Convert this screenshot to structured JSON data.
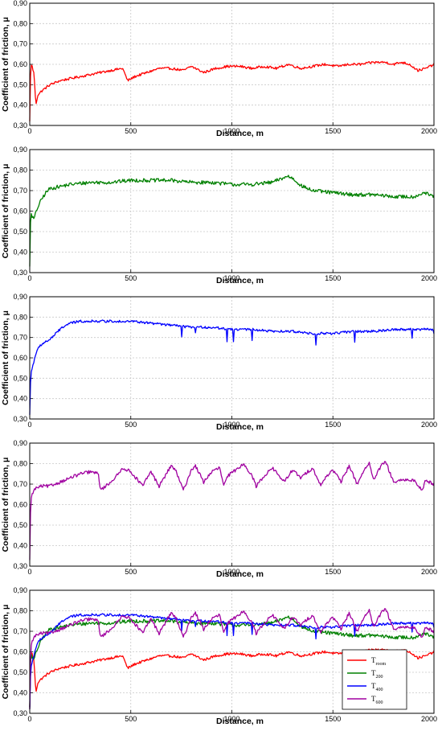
{
  "chart_data": [
    {
      "type": "line",
      "xlabel": "Distance, m",
      "ylabel": "Coefficient of friction, μ",
      "xlim": [
        0,
        2000
      ],
      "ylim": [
        0.3,
        0.9
      ],
      "xticks": [
        "0",
        "500",
        "1000",
        "1500",
        "2000"
      ],
      "yticks": [
        "0,30",
        "0,40",
        "0,50",
        "0,60",
        "0,70",
        "0,80",
        "0,90"
      ],
      "grid": true,
      "series": [
        {
          "color": "#ff0000",
          "x": [
            0,
            5,
            12,
            22,
            30,
            40,
            60,
            100,
            150,
            200,
            250,
            300,
            350,
            400,
            460,
            480,
            485,
            520,
            580,
            640,
            700,
            760,
            800,
            860,
            920,
            980,
            1040,
            1100,
            1160,
            1220,
            1280,
            1340,
            1400,
            1460,
            1520,
            1580,
            1640,
            1700,
            1760,
            1800,
            1840,
            1880,
            1920,
            1960,
            2000
          ],
          "y": [
            0.32,
            0.6,
            0.59,
            0.55,
            0.4,
            0.45,
            0.47,
            0.5,
            0.52,
            0.53,
            0.54,
            0.55,
            0.56,
            0.57,
            0.58,
            0.53,
            0.52,
            0.54,
            0.56,
            0.58,
            0.58,
            0.57,
            0.59,
            0.56,
            0.58,
            0.59,
            0.59,
            0.58,
            0.59,
            0.58,
            0.6,
            0.58,
            0.59,
            0.6,
            0.59,
            0.6,
            0.6,
            0.61,
            0.61,
            0.6,
            0.61,
            0.6,
            0.57,
            0.58,
            0.6
          ]
        }
      ]
    },
    {
      "type": "line",
      "xlabel": "Distance, m",
      "ylabel": "Coefficient of friction, μ",
      "xlim": [
        0,
        2000
      ],
      "ylim": [
        0.3,
        0.9
      ],
      "xticks": [
        "0",
        "500",
        "1000",
        "1500",
        "2000"
      ],
      "yticks": [
        "0,30",
        "0,40",
        "0,50",
        "0,60",
        "0,70",
        "0,80",
        "0,90"
      ],
      "grid": true,
      "series": [
        {
          "color": "#008000",
          "x": [
            0,
            5,
            10,
            20,
            40,
            60,
            80,
            100,
            150,
            200,
            300,
            400,
            500,
            600,
            700,
            800,
            900,
            1000,
            1100,
            1200,
            1250,
            1280,
            1300,
            1350,
            1400,
            1500,
            1600,
            1700,
            1800,
            1900,
            1950,
            2000
          ],
          "y": [
            0.33,
            0.6,
            0.58,
            0.56,
            0.62,
            0.66,
            0.69,
            0.71,
            0.72,
            0.73,
            0.74,
            0.74,
            0.75,
            0.75,
            0.75,
            0.74,
            0.74,
            0.73,
            0.73,
            0.74,
            0.76,
            0.77,
            0.76,
            0.72,
            0.7,
            0.69,
            0.68,
            0.68,
            0.67,
            0.67,
            0.69,
            0.67
          ]
        }
      ]
    },
    {
      "type": "line",
      "xlabel": "Distance, m",
      "ylabel": "Coefficient of friction, μ",
      "xlim": [
        0,
        2000
      ],
      "ylim": [
        0.3,
        0.9
      ],
      "xticks": [
        "0",
        "500",
        "1000",
        "1500",
        "2000"
      ],
      "yticks": [
        "0,30",
        "0,40",
        "0,50",
        "0,60",
        "0,70",
        "0,80",
        "0,90"
      ],
      "grid": true,
      "series": [
        {
          "color": "#0000ff",
          "x": [
            0,
            5,
            15,
            30,
            50,
            80,
            100,
            130,
            160,
            200,
            250,
            300,
            400,
            500,
            600,
            700,
            800,
            900,
            1000,
            1100,
            1200,
            1300,
            1400,
            1500,
            1600,
            1700,
            1800,
            1900,
            2000
          ],
          "y": [
            0.32,
            0.52,
            0.56,
            0.62,
            0.66,
            0.68,
            0.69,
            0.72,
            0.75,
            0.77,
            0.78,
            0.78,
            0.78,
            0.78,
            0.77,
            0.76,
            0.75,
            0.75,
            0.74,
            0.74,
            0.73,
            0.73,
            0.72,
            0.72,
            0.73,
            0.73,
            0.74,
            0.74,
            0.74
          ]
        }
      ]
    },
    {
      "type": "line",
      "xlabel": "Distance, m",
      "ylabel": "Coefficient of friction, μ",
      "xlim": [
        0,
        2000
      ],
      "ylim": [
        0.3,
        0.9
      ],
      "xticks": [
        "0",
        "500",
        "1000",
        "1500",
        "2000"
      ],
      "yticks": [
        "0,30",
        "0,40",
        "0,50",
        "0,60",
        "0,70",
        "0,80",
        "0,90"
      ],
      "grid": true,
      "series": [
        {
          "color": "#a000a0",
          "x": [
            0,
            5,
            15,
            30,
            60,
            100,
            150,
            200,
            250,
            300,
            340,
            350,
            400,
            440,
            460,
            500,
            560,
            580,
            600,
            640,
            700,
            720,
            760,
            800,
            820,
            860,
            900,
            940,
            960,
            980,
            1060,
            1100,
            1120,
            1160,
            1200,
            1260,
            1300,
            1340,
            1400,
            1440,
            1460,
            1500,
            1540,
            1580,
            1620,
            1660,
            1680,
            1700,
            1740,
            1760,
            1800,
            1860,
            1900,
            1940,
            1960,
            2000
          ],
          "y": [
            0.33,
            0.62,
            0.66,
            0.68,
            0.69,
            0.69,
            0.71,
            0.73,
            0.75,
            0.76,
            0.75,
            0.67,
            0.71,
            0.75,
            0.78,
            0.76,
            0.69,
            0.73,
            0.76,
            0.69,
            0.79,
            0.77,
            0.67,
            0.77,
            0.79,
            0.71,
            0.76,
            0.78,
            0.69,
            0.74,
            0.8,
            0.74,
            0.69,
            0.74,
            0.78,
            0.71,
            0.77,
            0.73,
            0.78,
            0.69,
            0.73,
            0.77,
            0.71,
            0.79,
            0.7,
            0.78,
            0.8,
            0.72,
            0.79,
            0.81,
            0.71,
            0.72,
            0.72,
            0.67,
            0.72,
            0.7
          ]
        }
      ]
    },
    {
      "type": "line",
      "xlabel": "Distance, m",
      "ylabel": "Coefficient of friction, μ",
      "xlim": [
        0,
        2000
      ],
      "ylim": [
        0.3,
        0.9
      ],
      "xticks": [
        "0",
        "500",
        "1000",
        "1500",
        "2000"
      ],
      "yticks": [
        "0,30",
        "0,40",
        "0,50",
        "0,60",
        "0,70",
        "0,80",
        "0,90"
      ],
      "grid": true,
      "legend": {
        "placement": "bottom-right"
      },
      "series": [
        {
          "name": "T",
          "subscript": "room",
          "color": "#ff0000",
          "ref": 0
        },
        {
          "name": "T",
          "subscript": "200",
          "color": "#008000",
          "ref": 1
        },
        {
          "name": "T",
          "subscript": "400",
          "color": "#0000ff",
          "ref": 2
        },
        {
          "name": "T",
          "subscript": "600",
          "color": "#a000a0",
          "ref": 3
        }
      ]
    }
  ]
}
